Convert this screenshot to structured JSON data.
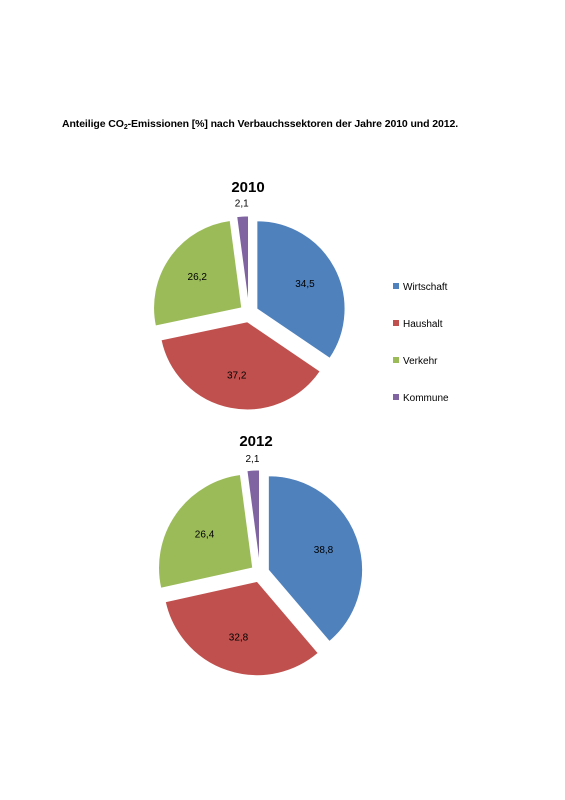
{
  "page": {
    "title_pre": "Anteilige CO",
    "title_sub": "2",
    "title_post": "-Emissionen [%] nach Verbauchssektoren der Jahre 2010 und 2012."
  },
  "legend": [
    {
      "label": "Wirtschaft",
      "color": "#4F81BD"
    },
    {
      "label": "Haushalt",
      "color": "#C0504D"
    },
    {
      "label": "Verkehr",
      "color": "#9BBB59"
    },
    {
      "label": "Kommune",
      "color": "#8064A2"
    }
  ],
  "chart_data": [
    {
      "type": "pie",
      "title": "2010",
      "categories": [
        "Wirtschaft",
        "Haushalt",
        "Verkehr",
        "Kommune"
      ],
      "values": [
        34.5,
        37.2,
        26.2,
        2.1
      ],
      "value_labels": [
        "34,5",
        "37,2",
        "26,2",
        "2,1"
      ],
      "colors": [
        "#4F81BD",
        "#C0504D",
        "#9BBB59",
        "#8064A2"
      ],
      "exploded": true,
      "legend_position": "right"
    },
    {
      "type": "pie",
      "title": "2012",
      "categories": [
        "Wirtschaft",
        "Haushalt",
        "Verkehr",
        "Kommune"
      ],
      "values": [
        38.8,
        32.8,
        26.4,
        2.1
      ],
      "value_labels": [
        "38,8",
        "32,8",
        "26,4",
        "2,1"
      ],
      "colors": [
        "#4F81BD",
        "#C0504D",
        "#9BBB59",
        "#8064A2"
      ],
      "exploded": true,
      "legend_position": "none"
    }
  ]
}
